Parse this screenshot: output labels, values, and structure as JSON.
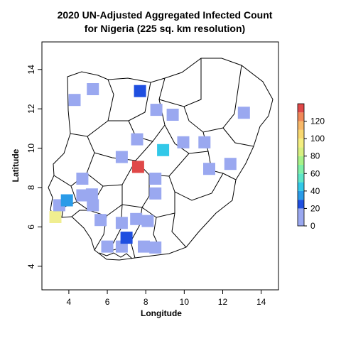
{
  "title_lines": [
    "2020 UN-Adjusted Aggregated Infected Count",
    "for Nigeria (225 sq. km resolution)"
  ],
  "chart_data": {
    "type": "heatmap",
    "xlabel": "Longitude",
    "ylabel": "Latitude",
    "xlim": [
      2.6,
      14.9
    ],
    "ylim": [
      2.8,
      15.4
    ],
    "x_ticks": [
      "4",
      "6",
      "8",
      "10",
      "12",
      "14"
    ],
    "y_ticks": [
      "4",
      "6",
      "8",
      "10",
      "12",
      "14"
    ],
    "legend": {
      "position": "right",
      "ticks": [
        "0",
        "20",
        "40",
        "60",
        "80",
        "100",
        "120"
      ],
      "range": [
        0,
        140
      ],
      "bands": [
        {
          "from": 0,
          "to": 20,
          "color": "#9aa8f0"
        },
        {
          "from": 20,
          "to": 30,
          "color": "#1f4fe0"
        },
        {
          "from": 30,
          "to": 40,
          "color": "#2a9be8"
        },
        {
          "from": 40,
          "to": 50,
          "color": "#32c8e8"
        },
        {
          "from": 50,
          "to": 60,
          "color": "#5ee6c8"
        },
        {
          "from": 60,
          "to": 70,
          "color": "#7ff0a8"
        },
        {
          "from": 70,
          "to": 80,
          "color": "#a8f288"
        },
        {
          "from": 80,
          "to": 90,
          "color": "#d8f080"
        },
        {
          "from": 90,
          "to": 100,
          "color": "#f4ee80"
        },
        {
          "from": 100,
          "to": 110,
          "color": "#f8d870"
        },
        {
          "from": 110,
          "to": 120,
          "color": "#f8b868"
        },
        {
          "from": 120,
          "to": 130,
          "color": "#f08858"
        },
        {
          "from": 130,
          "to": 140,
          "color": "#e04848"
        }
      ]
    },
    "cells": [
      {
        "lon": 3.3,
        "lat": 6.5,
        "value": 90,
        "color": "#f0ee90"
      },
      {
        "lon": 3.5,
        "lat": 7.1,
        "value": 10,
        "color": "#9aa8f0"
      },
      {
        "lon": 3.9,
        "lat": 7.35,
        "value": 30,
        "color": "#2a9be8"
      },
      {
        "lon": 4.3,
        "lat": 12.45,
        "value": 10,
        "color": "#9aa8f0"
      },
      {
        "lon": 5.25,
        "lat": 13.0,
        "value": 10,
        "color": "#9aa8f0"
      },
      {
        "lon": 4.7,
        "lat": 8.45,
        "value": 10,
        "color": "#9aa8f0"
      },
      {
        "lon": 4.7,
        "lat": 7.6,
        "value": 10,
        "color": "#9aa8f0"
      },
      {
        "lon": 5.2,
        "lat": 7.65,
        "value": 10,
        "color": "#9aa8f0"
      },
      {
        "lon": 5.25,
        "lat": 7.1,
        "value": 10,
        "color": "#9aa8f0"
      },
      {
        "lon": 5.65,
        "lat": 6.35,
        "value": 10,
        "color": "#9aa8f0"
      },
      {
        "lon": 6.75,
        "lat": 9.55,
        "value": 10,
        "color": "#9aa8f0"
      },
      {
        "lon": 6.0,
        "lat": 5.0,
        "value": 10,
        "color": "#9aa8f0"
      },
      {
        "lon": 6.75,
        "lat": 6.2,
        "value": 10,
        "color": "#9aa8f0"
      },
      {
        "lon": 6.75,
        "lat": 5.0,
        "value": 10,
        "color": "#9aa8f0"
      },
      {
        "lon": 7.0,
        "lat": 5.45,
        "value": 20,
        "color": "#1f4fe0"
      },
      {
        "lon": 7.5,
        "lat": 6.4,
        "value": 10,
        "color": "#9aa8f0"
      },
      {
        "lon": 7.55,
        "lat": 10.45,
        "value": 10,
        "color": "#9aa8f0"
      },
      {
        "lon": 7.7,
        "lat": 12.9,
        "value": 20,
        "color": "#1f4fe0"
      },
      {
        "lon": 7.6,
        "lat": 9.05,
        "value": 140,
        "color": "#e04848"
      },
      {
        "lon": 7.9,
        "lat": 5.0,
        "value": 10,
        "color": "#9aa8f0"
      },
      {
        "lon": 8.1,
        "lat": 6.3,
        "value": 10,
        "color": "#9aa8f0"
      },
      {
        "lon": 8.5,
        "lat": 4.95,
        "value": 10,
        "color": "#9aa8f0"
      },
      {
        "lon": 8.5,
        "lat": 8.45,
        "value": 10,
        "color": "#9aa8f0"
      },
      {
        "lon": 8.5,
        "lat": 7.7,
        "value": 10,
        "color": "#9aa8f0"
      },
      {
        "lon": 8.55,
        "lat": 11.95,
        "value": 10,
        "color": "#9aa8f0"
      },
      {
        "lon": 8.9,
        "lat": 9.9,
        "value": 30,
        "color": "#32c8e8"
      },
      {
        "lon": 9.4,
        "lat": 11.7,
        "value": 10,
        "color": "#9aa8f0"
      },
      {
        "lon": 9.95,
        "lat": 10.3,
        "value": 10,
        "color": "#9aa8f0"
      },
      {
        "lon": 11.05,
        "lat": 10.3,
        "value": 10,
        "color": "#9aa8f0"
      },
      {
        "lon": 11.3,
        "lat": 8.95,
        "value": 10,
        "color": "#9aa8f0"
      },
      {
        "lon": 12.4,
        "lat": 9.2,
        "value": 10,
        "color": "#9aa8f0"
      },
      {
        "lon": 13.1,
        "lat": 11.8,
        "value": 10,
        "color": "#9aa8f0"
      }
    ]
  }
}
